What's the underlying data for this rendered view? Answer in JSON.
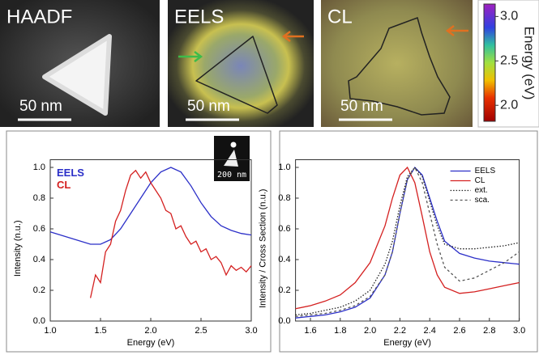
{
  "panels": [
    {
      "title": "HAADF",
      "scale_bar": "50 nm"
    },
    {
      "title": "EELS",
      "scale_bar": "50 nm"
    },
    {
      "title": "CL",
      "scale_bar": "50 nm"
    }
  ],
  "colorbar": {
    "label": "Energy (eV)",
    "lim": [
      1.82,
      3.14
    ],
    "ticks": [
      {
        "value": 3,
        "label": "3.0"
      },
      2.5,
      {
        "value": 2,
        "label": "2.0"
      }
    ]
  },
  "chart_data": [
    {
      "type": "line",
      "xlabel": "Energy (eV)",
      "ylabel": "Intensity (n.u.)",
      "inset_scale_bar": "200 nm",
      "legend": "upper left",
      "legend_lines": false,
      "xlim": [
        1,
        3
      ],
      "xticks": [
        {
          "value": 1,
          "label": "1.0"
        },
        1.5,
        {
          "value": 2,
          "label": "2.0"
        },
        2.5,
        {
          "value": 3,
          "label": "3.0"
        }
      ],
      "ylim": [
        0,
        1.05
      ],
      "yticks": [
        {
          "value": 0,
          "label": "0.0"
        },
        0.2,
        0.4,
        0.6,
        0.8,
        {
          "value": 1,
          "label": "1.0"
        }
      ],
      "series": [
        {
          "name": "EELS",
          "color": "#2b2fc8",
          "dash": "solid",
          "x": [
            1.0,
            1.2,
            1.4,
            1.5,
            1.6,
            1.7,
            1.8,
            1.9,
            2.0,
            2.1,
            2.2,
            2.3,
            2.4,
            2.5,
            2.6,
            2.7,
            2.8,
            2.9,
            3.0
          ],
          "values": [
            0.58,
            0.54,
            0.5,
            0.5,
            0.53,
            0.6,
            0.7,
            0.8,
            0.9,
            0.97,
            1.0,
            0.97,
            0.88,
            0.77,
            0.68,
            0.62,
            0.59,
            0.57,
            0.56
          ]
        },
        {
          "name": "CL",
          "color": "#d42020",
          "dash": "solid",
          "x": [
            1.4,
            1.45,
            1.5,
            1.55,
            1.6,
            1.65,
            1.7,
            1.75,
            1.8,
            1.85,
            1.9,
            1.95,
            2.0,
            2.05,
            2.1,
            2.15,
            2.2,
            2.25,
            2.3,
            2.35,
            2.4,
            2.45,
            2.5,
            2.55,
            2.6,
            2.65,
            2.7,
            2.75,
            2.8,
            2.85,
            2.9,
            2.95,
            3.0
          ],
          "values": [
            0.15,
            0.3,
            0.25,
            0.45,
            0.5,
            0.65,
            0.72,
            0.85,
            0.95,
            0.98,
            0.93,
            0.97,
            0.9,
            0.85,
            0.8,
            0.72,
            0.7,
            0.6,
            0.62,
            0.55,
            0.5,
            0.52,
            0.45,
            0.47,
            0.4,
            0.42,
            0.38,
            0.3,
            0.36,
            0.33,
            0.35,
            0.32,
            0.36
          ]
        }
      ]
    },
    {
      "type": "line",
      "xlabel": "Energy (eV)",
      "ylabel": "Intensity / Cross Section (n.u.)",
      "legend": "upper right",
      "legend_lines": true,
      "xlim": [
        1.5,
        3
      ],
      "xticks": [
        1.6,
        1.8,
        {
          "value": 2,
          "label": "2.0"
        },
        2.2,
        2.4,
        2.6,
        2.8,
        {
          "value": 3,
          "label": "3.0"
        }
      ],
      "ylim": [
        0,
        1.05
      ],
      "yticks": [
        {
          "value": 0,
          "label": "0.0"
        },
        0.2,
        0.4,
        0.6,
        0.8,
        {
          "value": 1,
          "label": "1.0"
        }
      ],
      "series": [
        {
          "name": "EELS",
          "color": "#2b2fc8",
          "dash": "solid",
          "x": [
            1.5,
            1.6,
            1.7,
            1.8,
            1.9,
            2.0,
            2.1,
            2.15,
            2.2,
            2.25,
            2.3,
            2.35,
            2.4,
            2.45,
            2.5,
            2.6,
            2.7,
            2.8,
            2.9,
            3.0
          ],
          "values": [
            0.02,
            0.03,
            0.04,
            0.06,
            0.09,
            0.15,
            0.3,
            0.45,
            0.7,
            0.92,
            1.0,
            0.95,
            0.8,
            0.65,
            0.52,
            0.44,
            0.41,
            0.39,
            0.38,
            0.37
          ]
        },
        {
          "name": "CL",
          "color": "#d42020",
          "dash": "solid",
          "x": [
            1.5,
            1.6,
            1.7,
            1.8,
            1.9,
            2.0,
            2.1,
            2.15,
            2.2,
            2.25,
            2.3,
            2.35,
            2.4,
            2.45,
            2.5,
            2.6,
            2.7,
            2.8,
            2.9,
            3.0
          ],
          "values": [
            0.08,
            0.1,
            0.13,
            0.17,
            0.25,
            0.38,
            0.62,
            0.8,
            0.95,
            1.0,
            0.9,
            0.68,
            0.45,
            0.3,
            0.22,
            0.18,
            0.19,
            0.21,
            0.23,
            0.25
          ]
        },
        {
          "name": "ext.",
          "color": "#222222",
          "dash": "dotted",
          "x": [
            1.5,
            1.6,
            1.7,
            1.8,
            1.9,
            2.0,
            2.1,
            2.15,
            2.2,
            2.25,
            2.3,
            2.35,
            2.4,
            2.45,
            2.5,
            2.6,
            2.7,
            2.8,
            2.9,
            3.0
          ],
          "values": [
            0.04,
            0.05,
            0.07,
            0.09,
            0.13,
            0.2,
            0.37,
            0.52,
            0.75,
            0.94,
            1.0,
            0.94,
            0.78,
            0.62,
            0.5,
            0.47,
            0.47,
            0.48,
            0.49,
            0.51
          ]
        },
        {
          "name": "sca.",
          "color": "#555555",
          "dash": "dashed",
          "x": [
            1.5,
            1.6,
            1.7,
            1.8,
            1.9,
            2.0,
            2.1,
            2.15,
            2.2,
            2.25,
            2.3,
            2.35,
            2.4,
            2.45,
            2.5,
            2.6,
            2.7,
            2.8,
            2.9,
            3.0
          ],
          "values": [
            0.03,
            0.04,
            0.05,
            0.07,
            0.1,
            0.16,
            0.3,
            0.45,
            0.7,
            0.92,
            1.0,
            0.9,
            0.7,
            0.5,
            0.35,
            0.26,
            0.28,
            0.33,
            0.38,
            0.45
          ]
        }
      ]
    }
  ]
}
